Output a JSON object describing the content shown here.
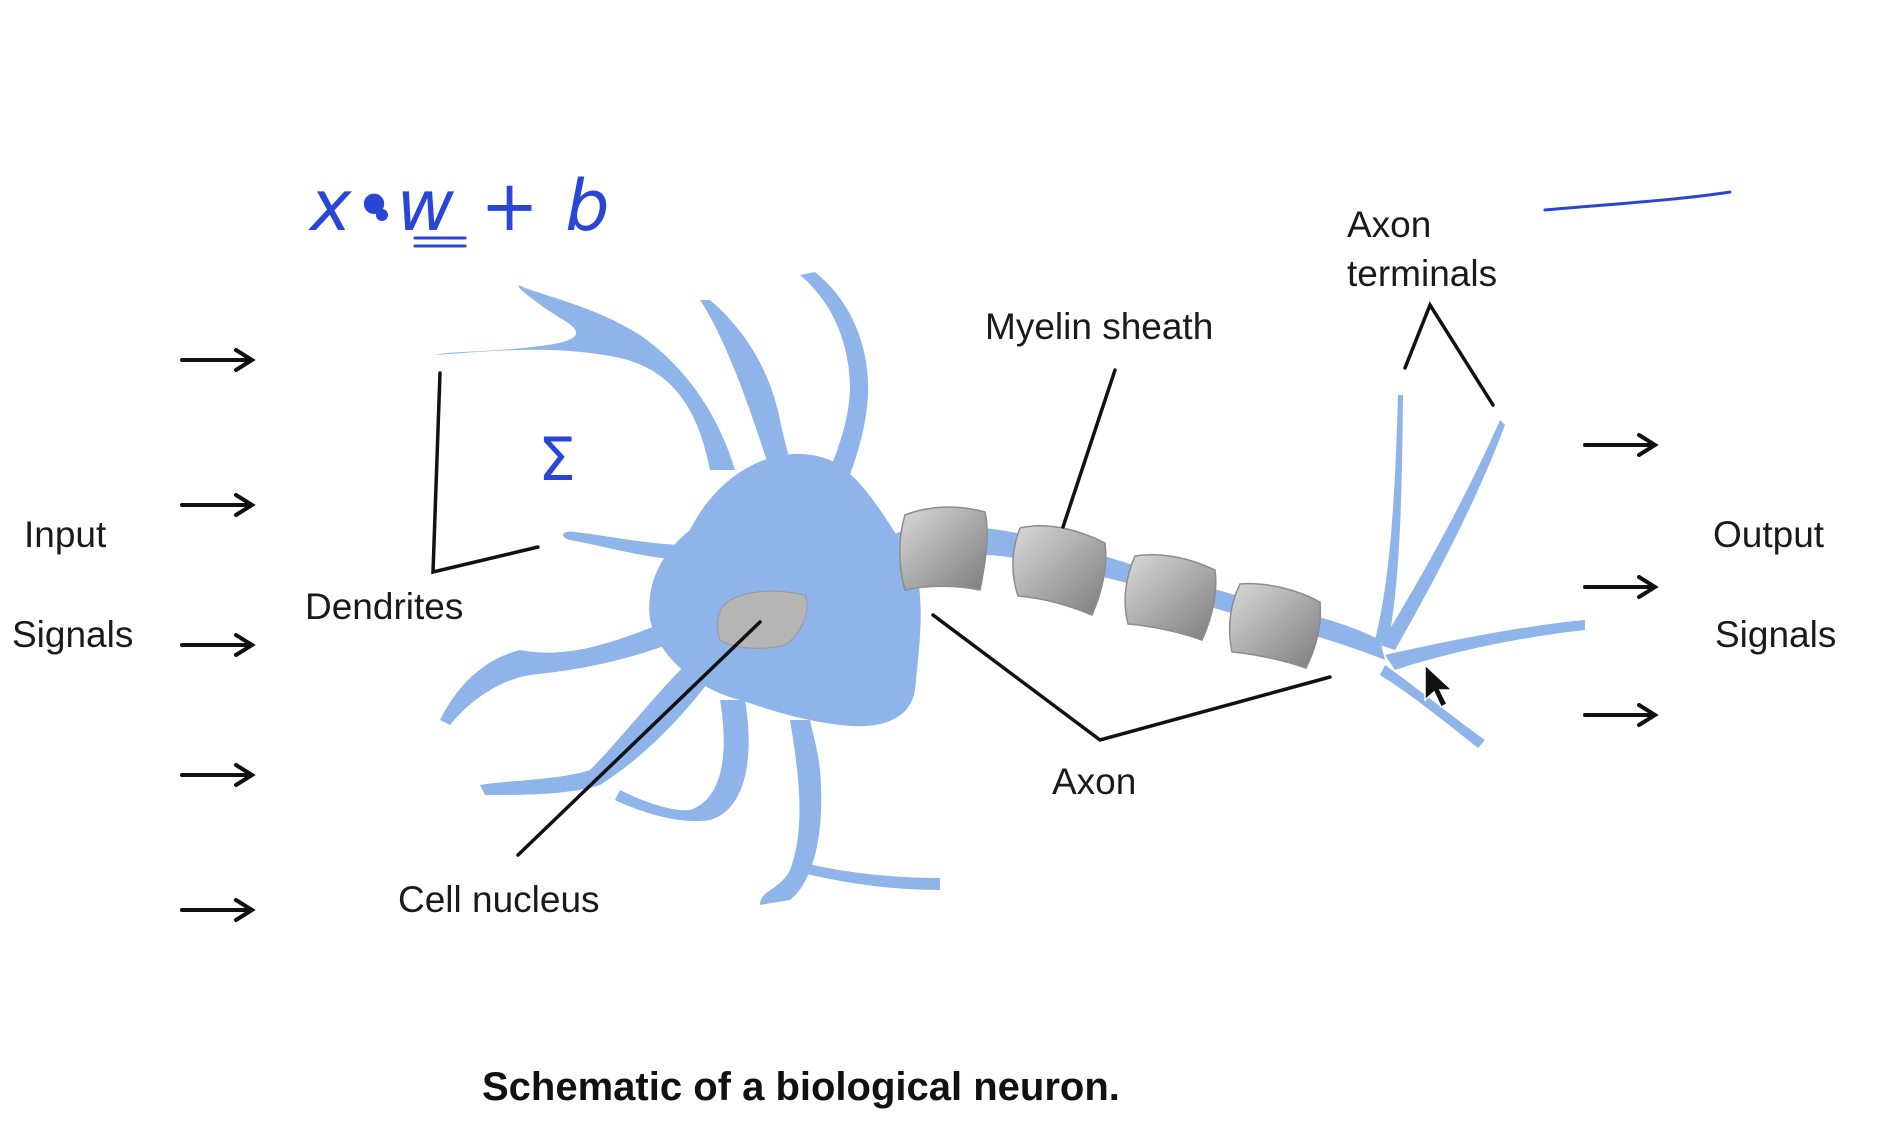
{
  "labels": {
    "input_line1": "Input",
    "input_line2": "Signals",
    "output_line1": "Output",
    "output_line2": "Signals",
    "dendrites": "Dendrites",
    "cell_nucleus": "Cell nucleus",
    "myelin_sheath": "Myelin sheath",
    "axon_terminals_line1": "Axon",
    "axon_terminals_line2": "terminals",
    "axon": "Axon"
  },
  "caption": "Schematic of a biological neuron.",
  "annotations": {
    "formula": "x•w + b",
    "sigma": "Σ"
  },
  "colors": {
    "neuron": "#8fb4ea",
    "neuron_light": "#a9c6f0",
    "myelin": "#a8a8a8",
    "nucleus": "#b4b4b4",
    "ink": "#2a46d6",
    "arrows": "#111111"
  },
  "counts": {
    "input_arrows": 5,
    "output_arrows": 3,
    "myelin_segments": 4
  }
}
